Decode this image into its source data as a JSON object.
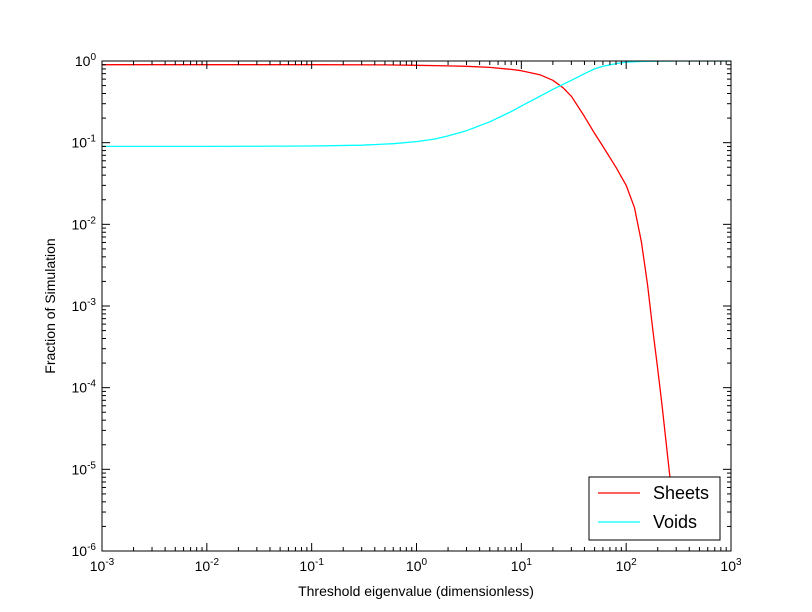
{
  "chart_data": {
    "type": "line",
    "title": "",
    "xlabel": "Threshold eigenvalue (dimensionless)",
    "ylabel": "Fraction of Simulation",
    "xscale": "log",
    "yscale": "log",
    "xlim": [
      0.001,
      1000
    ],
    "ylim": [
      1e-06,
      1
    ],
    "grid": false,
    "legend_position": "bottom-right",
    "x_ticks": [
      {
        "base": "10",
        "exp": "-3"
      },
      {
        "base": "10",
        "exp": "-2"
      },
      {
        "base": "10",
        "exp": "-1"
      },
      {
        "base": "10",
        "exp": "0"
      },
      {
        "base": "10",
        "exp": "1"
      },
      {
        "base": "10",
        "exp": "2"
      },
      {
        "base": "10",
        "exp": "3"
      }
    ],
    "y_ticks": [
      {
        "base": "10",
        "exp": "0"
      },
      {
        "base": "10",
        "exp": "-1"
      },
      {
        "base": "10",
        "exp": "-2"
      },
      {
        "base": "10",
        "exp": "-3"
      },
      {
        "base": "10",
        "exp": "-4"
      },
      {
        "base": "10",
        "exp": "-5"
      },
      {
        "base": "10",
        "exp": "-6"
      }
    ],
    "series": [
      {
        "name": "Sheets",
        "color": "#ff0000",
        "x": [
          0.001,
          0.01,
          0.1,
          0.5,
          1,
          2,
          3,
          5,
          8,
          10,
          15,
          20,
          25,
          30,
          40,
          50,
          60,
          80,
          100,
          120,
          140,
          160,
          180,
          200,
          220,
          240,
          260,
          270
        ],
        "y": [
          0.9,
          0.9,
          0.9,
          0.895,
          0.885,
          0.87,
          0.86,
          0.835,
          0.79,
          0.76,
          0.68,
          0.58,
          0.47,
          0.37,
          0.21,
          0.13,
          0.09,
          0.05,
          0.03,
          0.016,
          0.006,
          0.0018,
          0.0005,
          0.00017,
          6e-05,
          2.2e-05,
          8.5e-06,
          6.5e-06
        ]
      },
      {
        "name": "Voids",
        "color": "#00ffff",
        "x": [
          0.001,
          0.01,
          0.1,
          0.3,
          0.6,
          1,
          1.5,
          2,
          3,
          5,
          8,
          10,
          15,
          20,
          30,
          40,
          50,
          60,
          80,
          100,
          150,
          300,
          1000
        ],
        "y": [
          0.09,
          0.09,
          0.091,
          0.093,
          0.097,
          0.103,
          0.111,
          0.121,
          0.14,
          0.18,
          0.24,
          0.28,
          0.37,
          0.45,
          0.58,
          0.7,
          0.8,
          0.86,
          0.93,
          0.97,
          0.99,
          1.0,
          1.0
        ]
      }
    ]
  }
}
